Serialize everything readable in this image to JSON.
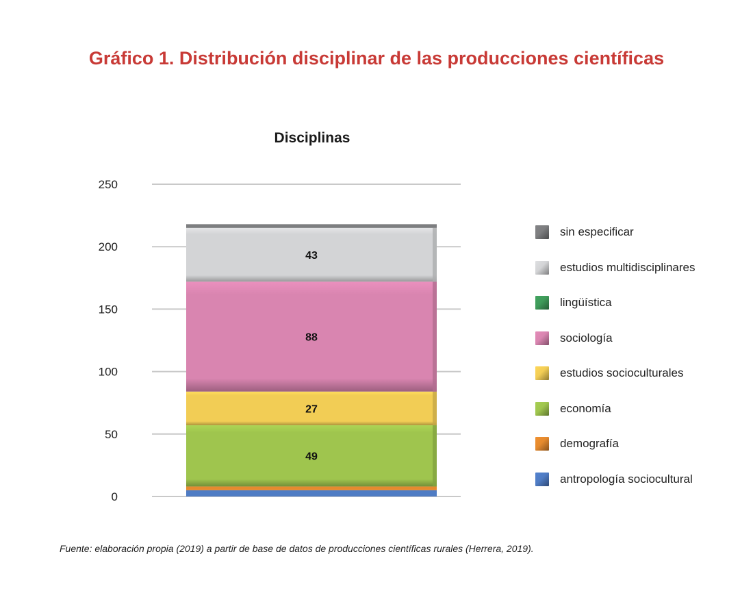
{
  "header": {
    "title": "Gráfico 1. Distribución disciplinar de las producciones científicas"
  },
  "source_note": "Fuente: elaboración propia (2019) a partir de base de datos de producciones científicas rurales (Herrera, 2019).",
  "chart_data": {
    "type": "bar",
    "stacked": true,
    "title": "Disciplinas",
    "xlabel": "",
    "ylabel": "",
    "ylim": [
      0,
      250
    ],
    "yticks": [
      0,
      50,
      100,
      150,
      200,
      250
    ],
    "grid": true,
    "legend_position": "right",
    "categories": [
      ""
    ],
    "series": [
      {
        "name": "antropología sociocultural",
        "values": [
          5
        ],
        "color": "#4f7cc4",
        "label": ""
      },
      {
        "name": "demografía",
        "values": [
          3
        ],
        "color": "#e58a2e",
        "label": ""
      },
      {
        "name": "economía",
        "values": [
          49
        ],
        "color": "#9fc54e",
        "label": "49"
      },
      {
        "name": "estudios socioculturales",
        "values": [
          27
        ],
        "color": "#f2cd55",
        "label": "27"
      },
      {
        "name": "sociología",
        "values": [
          88
        ],
        "color": "#d985b0",
        "label": "88"
      },
      {
        "name": "lingüística",
        "values": [
          0
        ],
        "color": "#3f9b5a",
        "label": ""
      },
      {
        "name": "estudios multidisciplinares",
        "values": [
          43
        ],
        "color": "#d3d4d6",
        "label": "43"
      },
      {
        "name": "sin especificar",
        "values": [
          3
        ],
        "color": "#7d7e80",
        "label": ""
      }
    ],
    "legend_order": [
      "sin especificar",
      "estudios multidisciplinares",
      "lingüística",
      "sociología",
      "estudios socioculturales",
      "economía",
      "demografía",
      "antropología sociocultural"
    ]
  }
}
